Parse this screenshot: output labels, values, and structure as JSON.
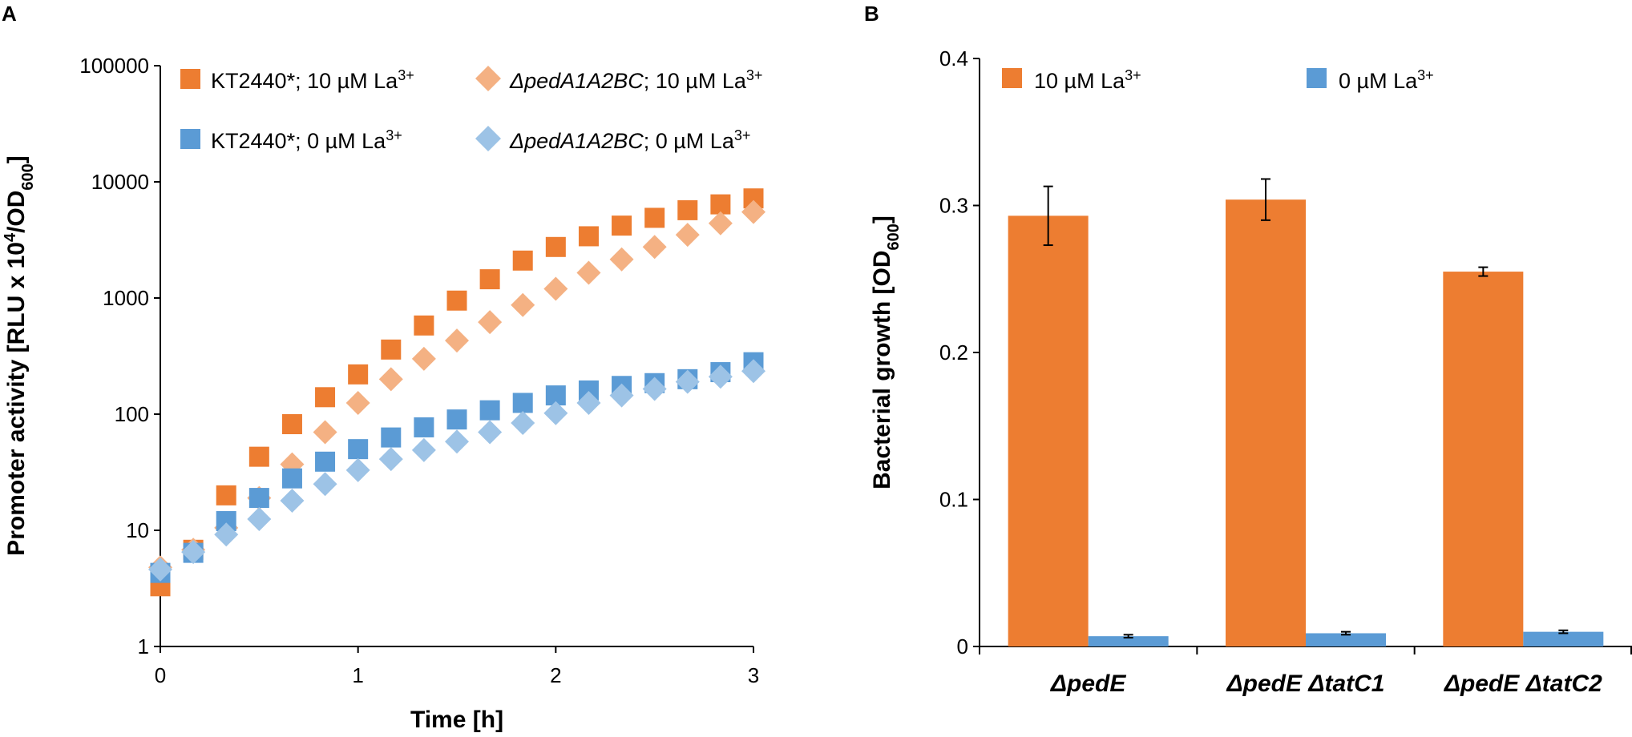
{
  "panels": {
    "a": {
      "label": "A"
    },
    "b": {
      "label": "B"
    }
  },
  "colors": {
    "orange": "#ED7D31",
    "light_orange": "#F4B183",
    "blue": "#5B9BD5",
    "light_blue": "#9DC3E6",
    "axis": "#000000"
  },
  "chart_data": [
    {
      "panel": "A",
      "type": "scatter",
      "title": "",
      "xlabel": "Time [h]",
      "ylabel_main": "Promoter activity [RLU x 10",
      "ylabel_exp": "4",
      "ylabel_mid": "/OD",
      "ylabel_sub": "600",
      "ylabel_end": "]",
      "yscale": "log",
      "xlim": [
        0,
        3
      ],
      "ylim": [
        1,
        100000
      ],
      "xticks": [
        "0",
        "1",
        "2",
        "3"
      ],
      "yticks": [
        "1",
        "10",
        "100",
        "1000",
        "10000",
        "100000"
      ],
      "legend_position": "top-left",
      "series": [
        {
          "name": "KT2440*; 10 µM La3+",
          "legend_text": "KT2440*; 10 µM La",
          "legend_italic": "",
          "legend_sup": "3+",
          "marker": "square",
          "color": "#ED7D31",
          "x": [
            0,
            0.1667,
            0.3333,
            0.5,
            0.6667,
            0.8333,
            1,
            1.1667,
            1.3333,
            1.5,
            1.6667,
            1.8333,
            2,
            2.1667,
            2.3333,
            2.5,
            2.6667,
            2.8333,
            3
          ],
          "y": [
            3.3,
            6.8,
            20,
            43,
            82,
            140,
            220,
            360,
            580,
            950,
            1450,
            2100,
            2750,
            3400,
            4200,
            4900,
            5700,
            6400,
            7200
          ]
        },
        {
          "name": "ΔpedA1A2BC; 10 µM La3+",
          "legend_text": "; 10 µM La",
          "legend_italic": "ΔpedA1A2BC",
          "legend_sup": "3+",
          "marker": "diamond",
          "color": "#F4B183",
          "x": [
            0,
            0.1667,
            0.3333,
            0.5,
            0.6667,
            0.8333,
            1,
            1.1667,
            1.3333,
            1.5,
            1.6667,
            1.8333,
            2,
            2.1667,
            2.3333,
            2.5,
            2.6667,
            2.8333,
            3
          ],
          "y": [
            4.8,
            6.8,
            10.5,
            19,
            37,
            70,
            125,
            200,
            300,
            430,
            620,
            870,
            1200,
            1650,
            2150,
            2750,
            3500,
            4400,
            5500
          ]
        },
        {
          "name": "KT2440*; 0 µM La3+",
          "legend_text": "KT2440*; 0 µM La",
          "legend_italic": "",
          "legend_sup": "3+",
          "marker": "square",
          "color": "#5B9BD5",
          "x": [
            0,
            0.1667,
            0.3333,
            0.5,
            0.6667,
            0.8333,
            1,
            1.1667,
            1.3333,
            1.5,
            1.6667,
            1.8333,
            2,
            2.1667,
            2.3333,
            2.5,
            2.6667,
            2.8333,
            3
          ],
          "y": [
            4.3,
            6.4,
            12,
            19,
            28,
            39,
            50,
            63,
            77,
            90,
            108,
            125,
            145,
            160,
            175,
            185,
            200,
            230,
            280
          ]
        },
        {
          "name": "ΔpedA1A2BC; 0 µM La3+",
          "legend_text": "; 0 µM La",
          "legend_italic": "ΔpedA1A2BC",
          "legend_sup": "3+",
          "marker": "diamond",
          "color": "#9DC3E6",
          "x": [
            0,
            0.1667,
            0.3333,
            0.5,
            0.6667,
            0.8333,
            1,
            1.1667,
            1.3333,
            1.5,
            1.6667,
            1.8333,
            2,
            2.1667,
            2.3333,
            2.5,
            2.6667,
            2.8333,
            3
          ],
          "y": [
            4.6,
            6.5,
            9.2,
            12.5,
            18,
            25,
            33,
            41,
            49,
            58,
            70,
            84,
            102,
            125,
            145,
            165,
            190,
            210,
            235
          ]
        }
      ]
    },
    {
      "panel": "B",
      "type": "bar",
      "title": "",
      "xlabel": "",
      "ylabel_main": "Bacterial growth [OD",
      "ylabel_sub": "600",
      "ylabel_end": "]",
      "ylim": [
        0,
        0.4
      ],
      "yticks": [
        "0",
        "0.1",
        "0.2",
        "0.3",
        "0.4"
      ],
      "categories": [
        "ΔpedE",
        "ΔpedE ΔtatC1",
        "ΔpedE ΔtatC2"
      ],
      "legend_position": "top",
      "series": [
        {
          "name": "10 µM La3+",
          "legend_text": "10 µM La",
          "legend_sup": "3+",
          "color": "#ED7D31",
          "values": [
            0.293,
            0.304,
            0.255
          ],
          "errors": [
            0.02,
            0.014,
            0.003
          ]
        },
        {
          "name": "0 µM La3+",
          "legend_text": "0 µM La",
          "legend_sup": "3+",
          "color": "#5B9BD5",
          "values": [
            0.007,
            0.009,
            0.01
          ],
          "errors": [
            0.001,
            0.001,
            0.001
          ]
        }
      ]
    }
  ]
}
